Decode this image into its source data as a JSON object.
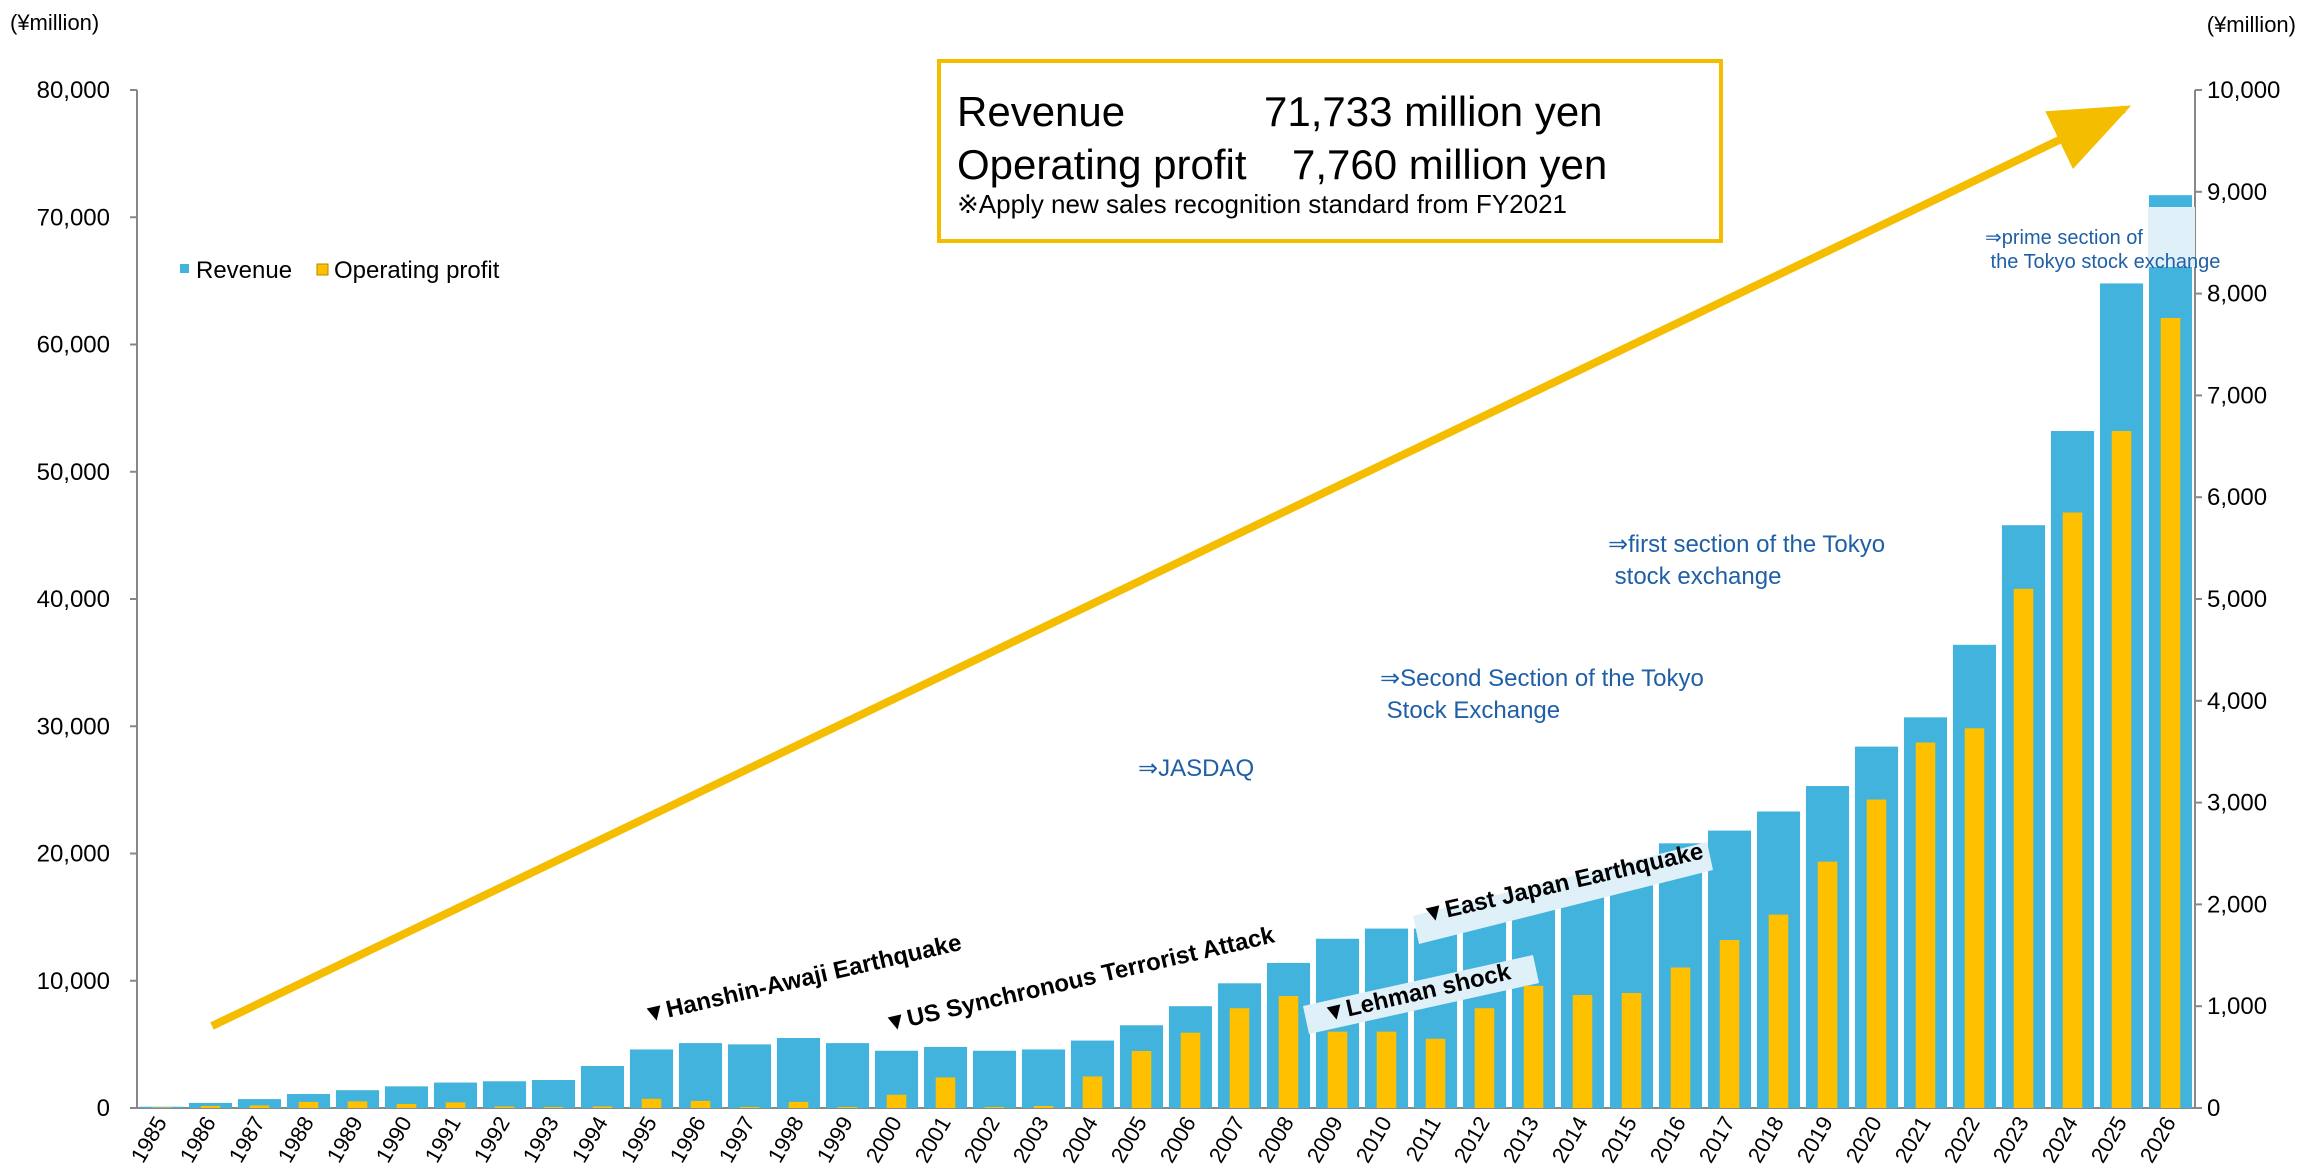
{
  "chart_data": {
    "type": "bar",
    "categories": [
      "1985",
      "1986",
      "1987",
      "1988",
      "1989",
      "1990",
      "1991",
      "1992",
      "1993",
      "1994",
      "1995",
      "1996",
      "1997",
      "1998",
      "1999",
      "2000",
      "2001",
      "2002",
      "2003",
      "2004",
      "2005",
      "2006",
      "2007",
      "2008",
      "2009",
      "2010",
      "2011",
      "2012",
      "2013",
      "2014",
      "2015",
      "2016",
      "2017",
      "2018",
      "2019",
      "2020",
      "2021",
      "2022",
      "2023",
      "2024",
      "2025",
      "2026"
    ],
    "series": [
      {
        "name": "Revenue",
        "axis": "left",
        "color": "#41b3dc",
        "values": [
          100,
          400,
          700,
          1100,
          1400,
          1700,
          2000,
          2100,
          2200,
          3300,
          4600,
          5100,
          5000,
          5500,
          5100,
          4500,
          4800,
          4500,
          4600,
          5300,
          6500,
          8000,
          9800,
          11400,
          13300,
          14100,
          14100,
          15300,
          15700,
          16900,
          17500,
          20800,
          21800,
          23300,
          25300,
          28400,
          30700,
          36400,
          45800,
          53200,
          64800,
          71733
        ]
      },
      {
        "name": "Operating profit",
        "axis": "right",
        "color": "#ffc000",
        "values": [
          5,
          20,
          25,
          60,
          65,
          40,
          55,
          15,
          10,
          15,
          90,
          70,
          10,
          60,
          10,
          130,
          300,
          10,
          20,
          310,
          560,
          740,
          980,
          1100,
          750,
          750,
          680,
          980,
          1200,
          1110,
          1130,
          1380,
          1650,
          1900,
          2420,
          3030,
          3590,
          3730,
          5100,
          5850,
          6650,
          7760
        ]
      }
    ],
    "y_left": {
      "unit": "(¥million)",
      "ylim": [
        0,
        80000
      ],
      "ticks": [
        "0",
        "10,000",
        "20,000",
        "30,000",
        "40,000",
        "50,000",
        "60,000",
        "70,000",
        "80,000"
      ]
    },
    "y_right": {
      "unit": "(¥million)",
      "ylim": [
        0,
        10000
      ],
      "ticks": [
        "0",
        "1,000",
        "2,000",
        "3,000",
        "4,000",
        "5,000",
        "6,000",
        "7,000",
        "8,000",
        "9,000",
        "10,000"
      ]
    },
    "legend": {
      "placement": "top-left",
      "items": [
        "Revenue",
        "Operating profit"
      ]
    },
    "summary_box": {
      "revenue_label": "Revenue",
      "revenue_value": "71,733 million yen",
      "profit_label": "Operating profit",
      "profit_value": "7,760 million yen",
      "note": "※Apply new sales recognition standard from FY2021"
    },
    "annotations": {
      "hanshin": "▼Hanshin-Awaji  Earthquake",
      "us_attack": "▼US Synchronous Terrorist Attack",
      "lehman": "▼Lehman shock",
      "east_japan": "▼East Japan Earthquake",
      "jasdaq": "⇒JASDAQ",
      "second_section_1": "⇒Second Section of the Tokyo",
      "second_section_2": " Stock Exchange",
      "first_section_1": "⇒first section of the Tokyo",
      "first_section_2": " stock exchange",
      "prime_1": "⇒prime section of",
      "prime_2": " the Tokyo stock exchange"
    },
    "colors": {
      "revenue": "#41b3dc",
      "profit": "#ffc000",
      "arrow": "#f5bd00",
      "annotation_blue": "#1f5fa6"
    }
  }
}
